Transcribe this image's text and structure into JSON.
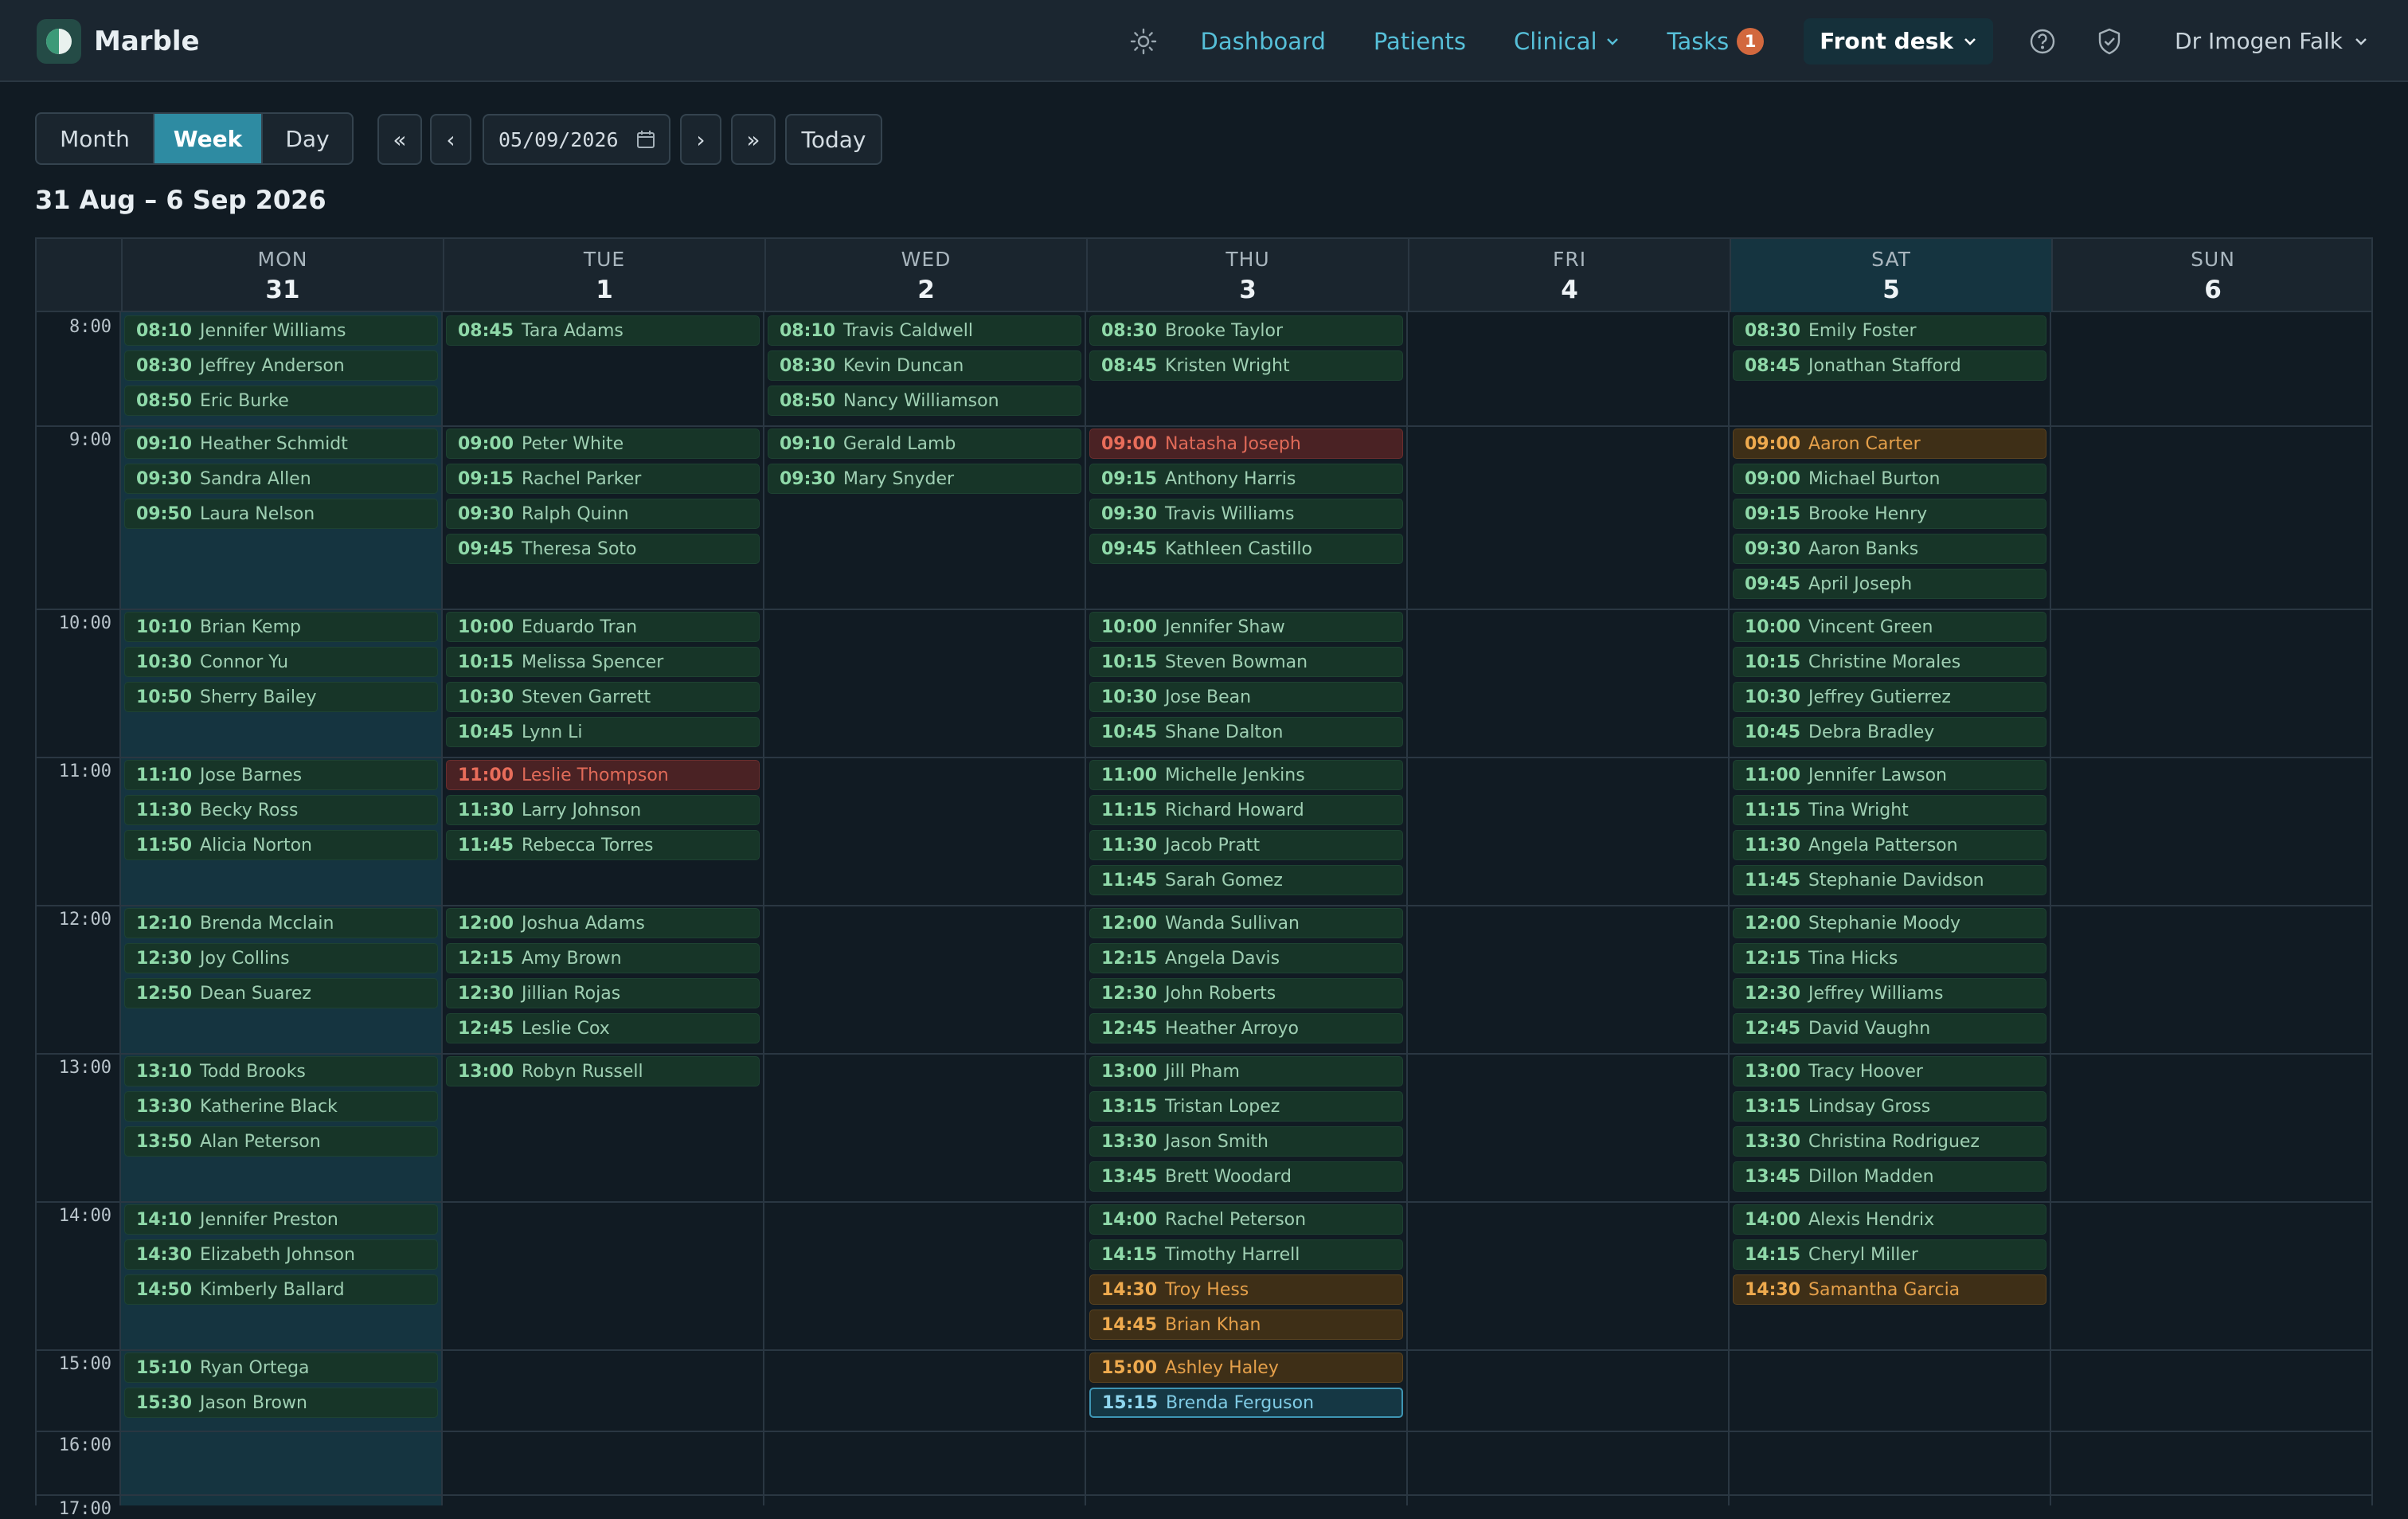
{
  "app": {
    "name": "Marble"
  },
  "nav": {
    "links": [
      {
        "label": "Dashboard"
      },
      {
        "label": "Patients"
      },
      {
        "label": "Clinical"
      },
      {
        "label": "Tasks",
        "badge": "1"
      }
    ],
    "role": "Front desk",
    "user": "Dr Imogen Falk",
    "icons": [
      "sun-icon",
      "help-icon",
      "shield-check-icon",
      "chevron-down-icon"
    ]
  },
  "toolbar": {
    "views": [
      "Month",
      "Week",
      "Day"
    ],
    "active_view": "Week",
    "first": "«",
    "prev": "‹",
    "next": "›",
    "last": "»",
    "date_value": "05/09/2026",
    "today": "Today"
  },
  "range_title": "31 Aug – 6 Sep 2026",
  "days": [
    {
      "name": "MON",
      "num": "31"
    },
    {
      "name": "TUE",
      "num": "1"
    },
    {
      "name": "WED",
      "num": "2"
    },
    {
      "name": "THU",
      "num": "3"
    },
    {
      "name": "FRI",
      "num": "4"
    },
    {
      "name": "SAT",
      "num": "5"
    },
    {
      "name": "SUN",
      "num": "6"
    }
  ],
  "hours": [
    "8:00",
    "9:00",
    "10:00",
    "11:00",
    "12:00",
    "13:00",
    "14:00",
    "15:00",
    "16:00",
    "17:00"
  ],
  "colors": {
    "accent": "#2e8ba2",
    "appt": "#173528",
    "cancelled": "#4a2224",
    "pending": "#3e2f17",
    "selected": "#3e95b3"
  },
  "appointments": [
    {
      "day": 0,
      "time": "08:10",
      "name": "Jennifer Williams"
    },
    {
      "day": 0,
      "time": "08:30",
      "name": "Jeffrey Anderson"
    },
    {
      "day": 0,
      "time": "08:50",
      "name": "Eric Burke"
    },
    {
      "day": 0,
      "time": "09:10",
      "name": "Heather Schmidt"
    },
    {
      "day": 0,
      "time": "09:30",
      "name": "Sandra Allen"
    },
    {
      "day": 0,
      "time": "09:50",
      "name": "Laura Nelson"
    },
    {
      "day": 0,
      "time": "10:10",
      "name": "Brian Kemp"
    },
    {
      "day": 0,
      "time": "10:30",
      "name": "Connor Yu"
    },
    {
      "day": 0,
      "time": "10:50",
      "name": "Sherry Bailey"
    },
    {
      "day": 0,
      "time": "11:10",
      "name": "Jose Barnes"
    },
    {
      "day": 0,
      "time": "11:30",
      "name": "Becky Ross"
    },
    {
      "day": 0,
      "time": "11:50",
      "name": "Alicia Norton"
    },
    {
      "day": 0,
      "time": "12:10",
      "name": "Brenda Mcclain"
    },
    {
      "day": 0,
      "time": "12:30",
      "name": "Joy Collins"
    },
    {
      "day": 0,
      "time": "12:50",
      "name": "Dean Suarez"
    },
    {
      "day": 0,
      "time": "13:10",
      "name": "Todd Brooks"
    },
    {
      "day": 0,
      "time": "13:30",
      "name": "Katherine Black"
    },
    {
      "day": 0,
      "time": "13:50",
      "name": "Alan Peterson"
    },
    {
      "day": 0,
      "time": "14:10",
      "name": "Jennifer Preston"
    },
    {
      "day": 0,
      "time": "14:30",
      "name": "Elizabeth Johnson"
    },
    {
      "day": 0,
      "time": "14:50",
      "name": "Kimberly Ballard"
    },
    {
      "day": 0,
      "time": "15:10",
      "name": "Ryan Ortega"
    },
    {
      "day": 0,
      "time": "15:30",
      "name": "Jason Brown"
    },
    {
      "day": 1,
      "time": "08:45",
      "name": "Tara Adams"
    },
    {
      "day": 1,
      "time": "09:00",
      "name": "Peter White"
    },
    {
      "day": 1,
      "time": "09:15",
      "name": "Rachel Parker"
    },
    {
      "day": 1,
      "time": "09:30",
      "name": "Ralph Quinn"
    },
    {
      "day": 1,
      "time": "09:45",
      "name": "Theresa Soto"
    },
    {
      "day": 1,
      "time": "10:00",
      "name": "Eduardo Tran"
    },
    {
      "day": 1,
      "time": "10:15",
      "name": "Melissa Spencer"
    },
    {
      "day": 1,
      "time": "10:30",
      "name": "Steven Garrett"
    },
    {
      "day": 1,
      "time": "10:45",
      "name": "Lynn Li"
    },
    {
      "day": 1,
      "time": "11:00",
      "name": "Leslie Thompson",
      "status": "red"
    },
    {
      "day": 1,
      "time": "11:30",
      "name": "Larry Johnson"
    },
    {
      "day": 1,
      "time": "11:45",
      "name": "Rebecca Torres"
    },
    {
      "day": 1,
      "time": "12:00",
      "name": "Joshua Adams"
    },
    {
      "day": 1,
      "time": "12:15",
      "name": "Amy Brown"
    },
    {
      "day": 1,
      "time": "12:30",
      "name": "Jillian Rojas"
    },
    {
      "day": 1,
      "time": "12:45",
      "name": "Leslie Cox"
    },
    {
      "day": 1,
      "time": "13:00",
      "name": "Robyn Russell"
    },
    {
      "day": 2,
      "time": "08:10",
      "name": "Travis Caldwell"
    },
    {
      "day": 2,
      "time": "08:30",
      "name": "Kevin Duncan"
    },
    {
      "day": 2,
      "time": "08:50",
      "name": "Nancy Williamson"
    },
    {
      "day": 2,
      "time": "09:10",
      "name": "Gerald Lamb"
    },
    {
      "day": 2,
      "time": "09:30",
      "name": "Mary Snyder"
    },
    {
      "day": 3,
      "time": "08:30",
      "name": "Brooke Taylor"
    },
    {
      "day": 3,
      "time": "08:45",
      "name": "Kristen Wright"
    },
    {
      "day": 3,
      "time": "09:00",
      "name": "Natasha Joseph",
      "status": "red"
    },
    {
      "day": 3,
      "time": "09:15",
      "name": "Anthony Harris"
    },
    {
      "day": 3,
      "time": "09:30",
      "name": "Travis Williams"
    },
    {
      "day": 3,
      "time": "09:45",
      "name": "Kathleen Castillo"
    },
    {
      "day": 3,
      "time": "10:00",
      "name": "Jennifer Shaw"
    },
    {
      "day": 3,
      "time": "10:15",
      "name": "Steven Bowman"
    },
    {
      "day": 3,
      "time": "10:30",
      "name": "Jose Bean"
    },
    {
      "day": 3,
      "time": "10:45",
      "name": "Shane Dalton"
    },
    {
      "day": 3,
      "time": "11:00",
      "name": "Michelle Jenkins"
    },
    {
      "day": 3,
      "time": "11:15",
      "name": "Richard Howard"
    },
    {
      "day": 3,
      "time": "11:30",
      "name": "Jacob Pratt"
    },
    {
      "day": 3,
      "time": "11:45",
      "name": "Sarah Gomez"
    },
    {
      "day": 3,
      "time": "12:00",
      "name": "Wanda Sullivan"
    },
    {
      "day": 3,
      "time": "12:15",
      "name": "Angela Davis"
    },
    {
      "day": 3,
      "time": "12:30",
      "name": "John Roberts"
    },
    {
      "day": 3,
      "time": "12:45",
      "name": "Heather Arroyo"
    },
    {
      "day": 3,
      "time": "13:00",
      "name": "Jill Pham"
    },
    {
      "day": 3,
      "time": "13:15",
      "name": "Tristan Lopez"
    },
    {
      "day": 3,
      "time": "13:30",
      "name": "Jason Smith"
    },
    {
      "day": 3,
      "time": "13:45",
      "name": "Brett Woodard"
    },
    {
      "day": 3,
      "time": "14:00",
      "name": "Rachel Peterson"
    },
    {
      "day": 3,
      "time": "14:15",
      "name": "Timothy Harrell"
    },
    {
      "day": 3,
      "time": "14:30",
      "name": "Troy Hess",
      "status": "amber"
    },
    {
      "day": 3,
      "time": "14:45",
      "name": "Brian Khan",
      "status": "amber"
    },
    {
      "day": 3,
      "time": "15:00",
      "name": "Ashley Haley",
      "status": "amber"
    },
    {
      "day": 3,
      "time": "15:15",
      "name": "Brenda Ferguson",
      "status": "blue"
    },
    {
      "day": 5,
      "time": "08:30",
      "name": "Emily Foster"
    },
    {
      "day": 5,
      "time": "08:45",
      "name": "Jonathan Stafford"
    },
    {
      "day": 5,
      "time": "09:00",
      "name": "Aaron Carter",
      "status": "amber"
    },
    {
      "day": 5,
      "time": "09:00",
      "name": "Michael Burton"
    },
    {
      "day": 5,
      "time": "09:15",
      "name": "Brooke Henry"
    },
    {
      "day": 5,
      "time": "09:30",
      "name": "Aaron Banks"
    },
    {
      "day": 5,
      "time": "09:45",
      "name": "April Joseph"
    },
    {
      "day": 5,
      "time": "10:00",
      "name": "Vincent Green"
    },
    {
      "day": 5,
      "time": "10:15",
      "name": "Christine Morales"
    },
    {
      "day": 5,
      "time": "10:30",
      "name": "Jeffrey Gutierrez"
    },
    {
      "day": 5,
      "time": "10:45",
      "name": "Debra Bradley"
    },
    {
      "day": 5,
      "time": "11:00",
      "name": "Jennifer Lawson"
    },
    {
      "day": 5,
      "time": "11:15",
      "name": "Tina Wright"
    },
    {
      "day": 5,
      "time": "11:30",
      "name": "Angela Patterson"
    },
    {
      "day": 5,
      "time": "11:45",
      "name": "Stephanie Davidson"
    },
    {
      "day": 5,
      "time": "12:00",
      "name": "Stephanie Moody"
    },
    {
      "day": 5,
      "time": "12:15",
      "name": "Tina Hicks"
    },
    {
      "day": 5,
      "time": "12:30",
      "name": "Jeffrey Williams"
    },
    {
      "day": 5,
      "time": "12:45",
      "name": "David Vaughn"
    },
    {
      "day": 5,
      "time": "13:00",
      "name": "Tracy Hoover"
    },
    {
      "day": 5,
      "time": "13:15",
      "name": "Lindsay Gross"
    },
    {
      "day": 5,
      "time": "13:30",
      "name": "Christina Rodriguez"
    },
    {
      "day": 5,
      "time": "13:45",
      "name": "Dillon Madden"
    },
    {
      "day": 5,
      "time": "14:00",
      "name": "Alexis Hendrix"
    },
    {
      "day": 5,
      "time": "14:15",
      "name": "Cheryl Miller"
    },
    {
      "day": 5,
      "time": "14:30",
      "name": "Samantha Garcia",
      "status": "amber"
    }
  ]
}
